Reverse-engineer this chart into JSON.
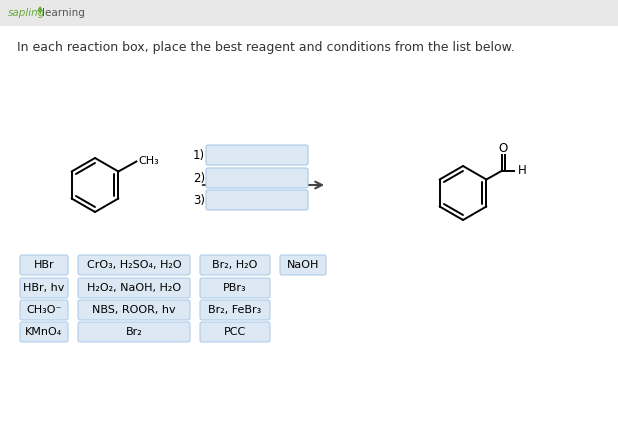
{
  "title": "In each reaction box, place the best reagent and conditions from the list below.",
  "title_fontsize": 9.0,
  "main_bg": "#ffffff",
  "header_color": "#e8e8e8",
  "reagent_box_color": "#dce9f5",
  "reagent_box_edge": "#a8c8e8",
  "sapling_green": "#6aaa3a",
  "sapling_text": "#555555",
  "input_box_color": "#dce9f5",
  "input_box_edge": "#a8c8e8",
  "reagents_col1": [
    "HBr",
    "HBr, hv",
    "CH₃O⁻",
    "KMnO₄"
  ],
  "reagents_col2": [
    "CrO₃, H₂SO₄, H₂O",
    "H₂O₂, NaOH, H₂O",
    "NBS, ROOR, hv",
    "Br₂"
  ],
  "reagents_col3": [
    "Br₂, H₂O",
    "PBr₃",
    "Br₂, FeBr₃",
    "PCC"
  ],
  "reagents_col4": [
    "NaOH",
    "",
    "",
    ""
  ],
  "input_labels": [
    "1)",
    "2)",
    "3)"
  ]
}
